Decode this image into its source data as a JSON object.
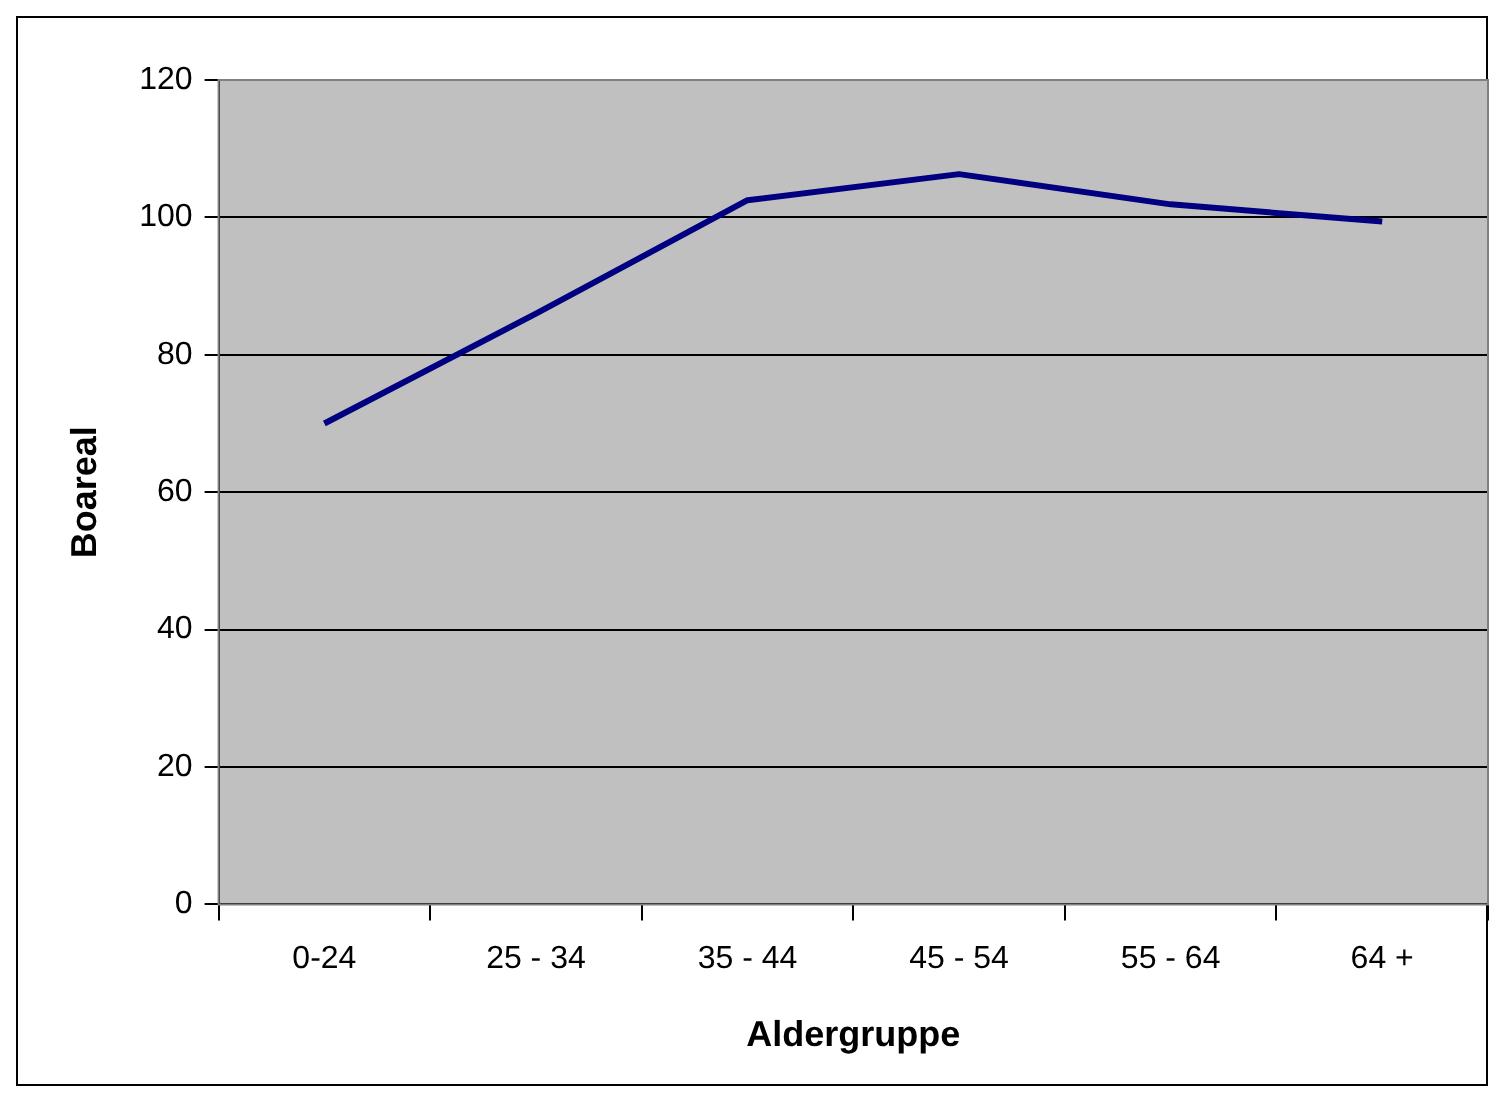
{
  "chart_data": {
    "type": "line",
    "xlabel": "Aldergruppe",
    "ylabel": "Boareal",
    "categories": [
      "0-24",
      "25 - 34",
      "35 - 44",
      "45 - 54",
      "55 - 64",
      "64 +"
    ],
    "series": [
      {
        "color": "#000080",
        "values": [
          70,
          86,
          102.5,
          106.3,
          101.9,
          99.4
        ]
      }
    ],
    "ylim": [
      0,
      120
    ],
    "yticks": [
      0,
      20,
      40,
      60,
      80,
      100,
      120
    ],
    "grid": "y",
    "legend": false,
    "marker": "none",
    "line_style": "solid"
  }
}
